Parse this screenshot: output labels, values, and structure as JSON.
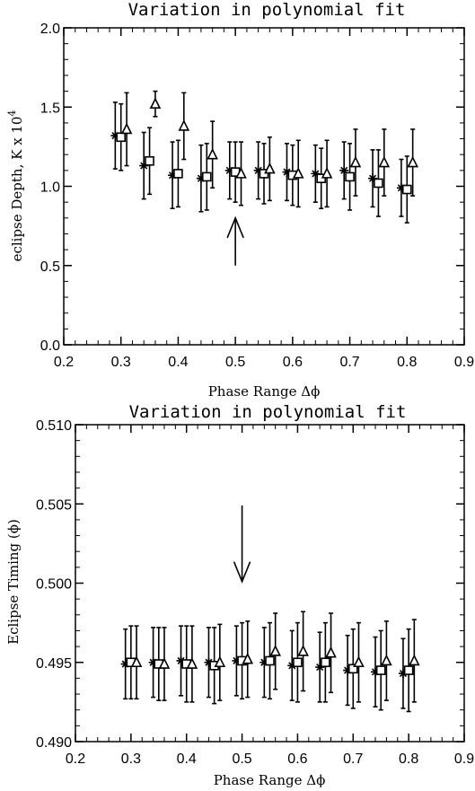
{
  "chart_data": [
    {
      "type": "scatter",
      "title": "Variation in polynomial fit",
      "xlabel": "Phase Range Δϕ",
      "ylabel": "eclipse Depth, K x 10",
      "ylabel_exp": "4",
      "xlim": [
        0.2,
        0.9
      ],
      "ylim": [
        0.0,
        2.0
      ],
      "xticks": [
        "0.2",
        "0.3",
        "0.4",
        "0.5",
        "0.6",
        "0.7",
        "0.8",
        "0.9"
      ],
      "yticks": [
        "0.0",
        "0.5",
        "1.0",
        "1.5",
        "2.0"
      ],
      "arrow": {
        "x": 0.5,
        "from_y": 0.5,
        "to_y": 0.8
      },
      "series": [
        {
          "marker": "asterisk",
          "points": [
            {
              "x": 0.29,
              "y": 1.32,
              "err": 0.21
            },
            {
              "x": 0.34,
              "y": 1.13,
              "err": 0.21
            },
            {
              "x": 0.39,
              "y": 1.07,
              "err": 0.21
            },
            {
              "x": 0.44,
              "y": 1.05,
              "err": 0.21
            },
            {
              "x": 0.49,
              "y": 1.1,
              "err": 0.18
            },
            {
              "x": 0.54,
              "y": 1.1,
              "err": 0.18
            },
            {
              "x": 0.59,
              "y": 1.09,
              "err": 0.18
            },
            {
              "x": 0.64,
              "y": 1.08,
              "err": 0.18
            },
            {
              "x": 0.69,
              "y": 1.1,
              "err": 0.18
            },
            {
              "x": 0.74,
              "y": 1.05,
              "err": 0.18
            },
            {
              "x": 0.79,
              "y": 0.99,
              "err": 0.18
            }
          ]
        },
        {
          "marker": "square",
          "points": [
            {
              "x": 0.3,
              "y": 1.31,
              "err": 0.21
            },
            {
              "x": 0.35,
              "y": 1.16,
              "err": 0.21
            },
            {
              "x": 0.4,
              "y": 1.08,
              "err": 0.21
            },
            {
              "x": 0.45,
              "y": 1.06,
              "err": 0.21
            },
            {
              "x": 0.5,
              "y": 1.09,
              "err": 0.19
            },
            {
              "x": 0.55,
              "y": 1.08,
              "err": 0.19
            },
            {
              "x": 0.6,
              "y": 1.07,
              "err": 0.19
            },
            {
              "x": 0.65,
              "y": 1.05,
              "err": 0.19
            },
            {
              "x": 0.7,
              "y": 1.06,
              "err": 0.21
            },
            {
              "x": 0.75,
              "y": 1.02,
              "err": 0.21
            },
            {
              "x": 0.8,
              "y": 0.98,
              "err": 0.21
            }
          ]
        },
        {
          "marker": "triangle",
          "points": [
            {
              "x": 0.31,
              "y": 1.36,
              "err": 0.23
            },
            {
              "x": 0.36,
              "y": 1.52,
              "err": 0.08
            },
            {
              "x": 0.41,
              "y": 1.38,
              "err": 0.21
            },
            {
              "x": 0.46,
              "y": 1.2,
              "err": 0.21
            },
            {
              "x": 0.51,
              "y": 1.08,
              "err": 0.2
            },
            {
              "x": 0.56,
              "y": 1.11,
              "err": 0.2
            },
            {
              "x": 0.61,
              "y": 1.08,
              "err": 0.21
            },
            {
              "x": 0.66,
              "y": 1.08,
              "err": 0.21
            },
            {
              "x": 0.71,
              "y": 1.15,
              "err": 0.21
            },
            {
              "x": 0.76,
              "y": 1.15,
              "err": 0.21
            },
            {
              "x": 0.81,
              "y": 1.15,
              "err": 0.21
            }
          ]
        }
      ]
    },
    {
      "type": "scatter",
      "title": "Variation in polynomial fit",
      "xlabel": "Phase Range Δϕ",
      "ylabel": "Eclipse Timing (ϕ)",
      "xlim": [
        0.2,
        0.9
      ],
      "ylim": [
        0.49,
        0.51
      ],
      "xticks": [
        "0.2",
        "0.3",
        "0.4",
        "0.5",
        "0.6",
        "0.7",
        "0.8",
        "0.9"
      ],
      "yticks": [
        "0.490",
        "0.495",
        "0.500",
        "0.505",
        "0.510"
      ],
      "arrow": {
        "x": 0.5,
        "from_y": 0.5049,
        "to_y": 0.5001
      },
      "series": [
        {
          "marker": "asterisk",
          "points": [
            {
              "x": 0.29,
              "y": 0.4949,
              "err": 0.0022
            },
            {
              "x": 0.34,
              "y": 0.495,
              "err": 0.0022
            },
            {
              "x": 0.39,
              "y": 0.4951,
              "err": 0.0022
            },
            {
              "x": 0.44,
              "y": 0.495,
              "err": 0.0022
            },
            {
              "x": 0.49,
              "y": 0.4951,
              "err": 0.0022
            },
            {
              "x": 0.54,
              "y": 0.495,
              "err": 0.0022
            },
            {
              "x": 0.59,
              "y": 0.4948,
              "err": 0.0022
            },
            {
              "x": 0.64,
              "y": 0.4947,
              "err": 0.0022
            },
            {
              "x": 0.69,
              "y": 0.4945,
              "err": 0.0022
            },
            {
              "x": 0.74,
              "y": 0.4944,
              "err": 0.0022
            },
            {
              "x": 0.79,
              "y": 0.4943,
              "err": 0.0022
            }
          ]
        },
        {
          "marker": "square",
          "points": [
            {
              "x": 0.3,
              "y": 0.495,
              "err": 0.0023
            },
            {
              "x": 0.35,
              "y": 0.4949,
              "err": 0.0023
            },
            {
              "x": 0.4,
              "y": 0.4949,
              "err": 0.0024
            },
            {
              "x": 0.45,
              "y": 0.4948,
              "err": 0.0024
            },
            {
              "x": 0.5,
              "y": 0.4951,
              "err": 0.0024
            },
            {
              "x": 0.55,
              "y": 0.4951,
              "err": 0.0024
            },
            {
              "x": 0.6,
              "y": 0.495,
              "err": 0.0025
            },
            {
              "x": 0.65,
              "y": 0.495,
              "err": 0.0025
            },
            {
              "x": 0.7,
              "y": 0.4946,
              "err": 0.0025
            },
            {
              "x": 0.75,
              "y": 0.4945,
              "err": 0.0025
            },
            {
              "x": 0.8,
              "y": 0.4945,
              "err": 0.0026
            }
          ]
        },
        {
          "marker": "triangle",
          "points": [
            {
              "x": 0.31,
              "y": 0.495,
              "err": 0.0023
            },
            {
              "x": 0.36,
              "y": 0.4949,
              "err": 0.0023
            },
            {
              "x": 0.41,
              "y": 0.4949,
              "err": 0.0024
            },
            {
              "x": 0.46,
              "y": 0.495,
              "err": 0.0024
            },
            {
              "x": 0.51,
              "y": 0.4952,
              "err": 0.0024
            },
            {
              "x": 0.56,
              "y": 0.4957,
              "err": 0.0024
            },
            {
              "x": 0.61,
              "y": 0.4957,
              "err": 0.0025
            },
            {
              "x": 0.66,
              "y": 0.4956,
              "err": 0.0025
            },
            {
              "x": 0.71,
              "y": 0.495,
              "err": 0.0025
            },
            {
              "x": 0.76,
              "y": 0.4951,
              "err": 0.0025
            },
            {
              "x": 0.81,
              "y": 0.4951,
              "err": 0.0026
            }
          ]
        }
      ]
    }
  ]
}
